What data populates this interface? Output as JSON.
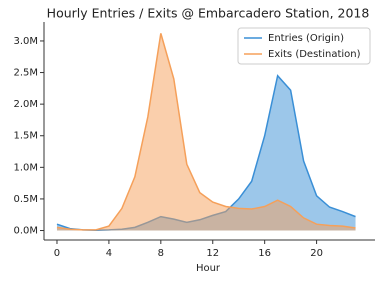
{
  "chart_data": {
    "type": "area",
    "title": "Hourly Entries / Exits @ Embarcadero Station, 2018",
    "x_label": "Hour",
    "x": [
      0,
      1,
      2,
      3,
      4,
      5,
      6,
      7,
      8,
      9,
      10,
      11,
      12,
      13,
      14,
      15,
      16,
      17,
      18,
      19,
      20,
      21,
      22,
      23
    ],
    "series": [
      {
        "name": "Entries (Origin)",
        "color": "#3a8fd6",
        "values": [
          100000,
          30000,
          10000,
          5000,
          10000,
          20000,
          50000,
          130000,
          220000,
          180000,
          130000,
          170000,
          240000,
          300000,
          500000,
          780000,
          1500000,
          2450000,
          2220000,
          1100000,
          550000,
          370000,
          300000,
          220000
        ]
      },
      {
        "name": "Exits (Destination)",
        "color": "#f5a05a",
        "values": [
          50000,
          20000,
          10000,
          10000,
          70000,
          350000,
          850000,
          1800000,
          3120000,
          2400000,
          1050000,
          600000,
          450000,
          380000,
          350000,
          340000,
          380000,
          480000,
          380000,
          200000,
          100000,
          80000,
          70000,
          40000
        ]
      }
    ],
    "xlim": [
      -1,
      24.5
    ],
    "xticks": [
      0,
      4,
      8,
      12,
      16,
      20
    ],
    "ylim": [
      -150000,
      3300000
    ],
    "yticks": [
      {
        "value": 0,
        "label": "0.0M"
      },
      {
        "value": 500000,
        "label": "0.5M"
      },
      {
        "value": 1000000,
        "label": "1.0M"
      },
      {
        "value": 1500000,
        "label": "1.5M"
      },
      {
        "value": 2000000,
        "label": "2.0M"
      },
      {
        "value": 2500000,
        "label": "2.5M"
      },
      {
        "value": 3000000,
        "label": "3.0M"
      }
    ],
    "legend": "upper right",
    "grid": false
  }
}
